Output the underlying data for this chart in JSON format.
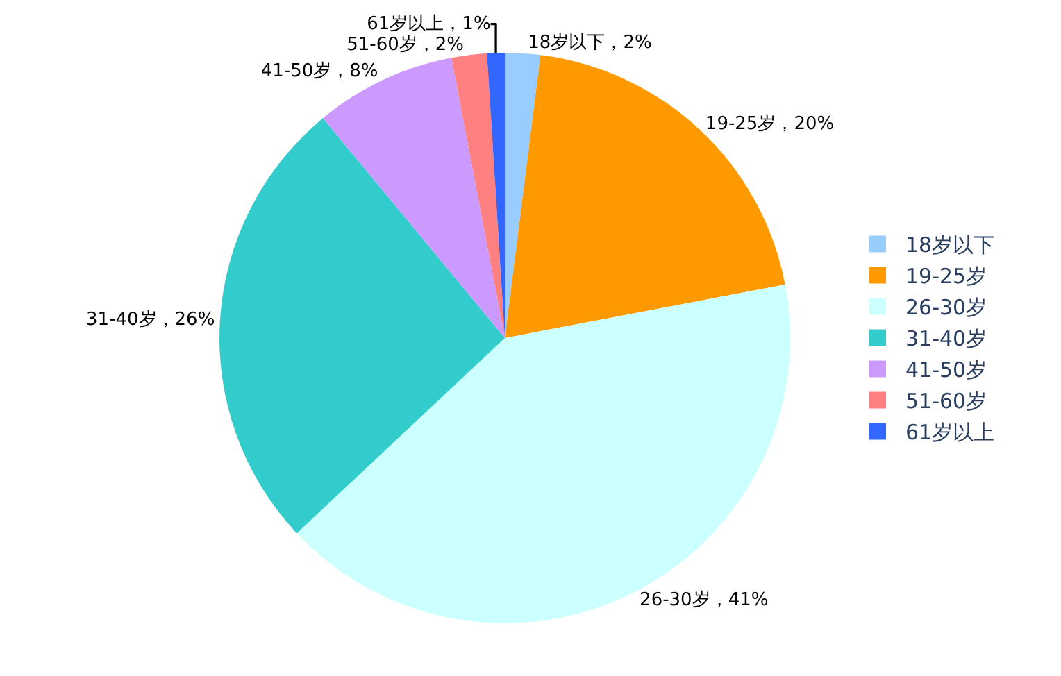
{
  "chart_data": {
    "type": "pie",
    "categories": [
      "18岁以下",
      "19-25岁",
      "26-30岁",
      "31-40岁",
      "41-50岁",
      "51-60岁",
      "61岁以上"
    ],
    "values": [
      2,
      20,
      41,
      26,
      8,
      2,
      1
    ],
    "colors": [
      "#99ccff",
      "#ff9900",
      "#ccffff",
      "#33cccc",
      "#cc99ff",
      "#ff8080",
      "#3366ff"
    ],
    "value_labels": [
      "18岁以下，2%",
      "19-25岁，20%",
      "26-30岁，41%",
      "31-40岁，26%",
      "41-50岁，8%",
      "51-60岁，2%",
      "61岁以上，1%"
    ],
    "legend": "right"
  }
}
